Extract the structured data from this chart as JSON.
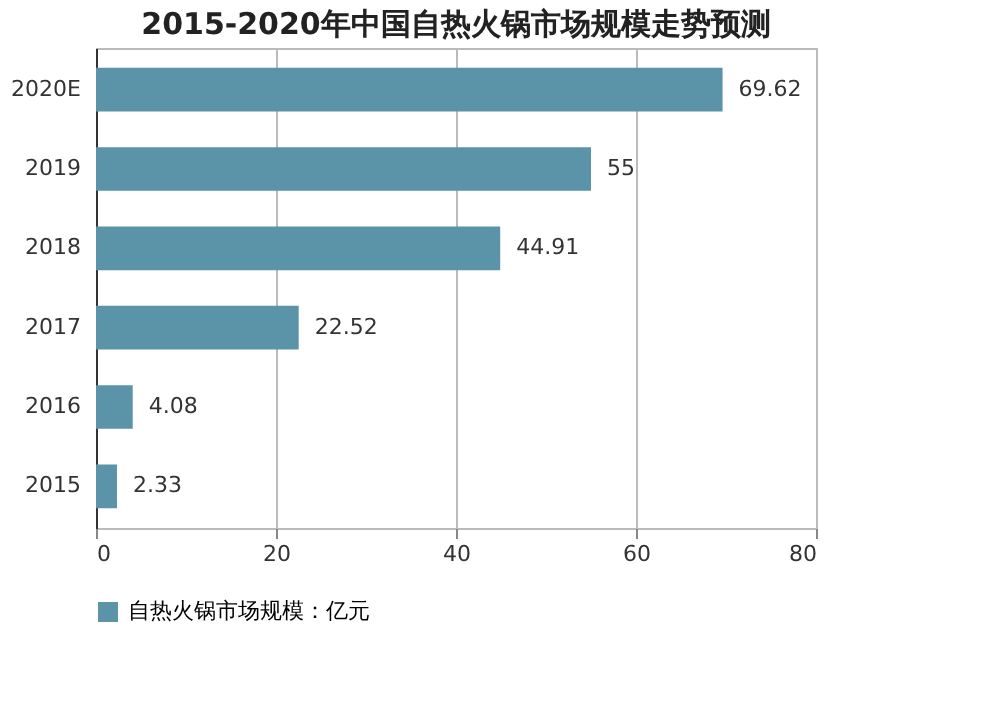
{
  "chart_data": {
    "type": "bar",
    "orientation": "horizontal",
    "title": "2015-2020年中国自热火锅市场规模走势预测",
    "categories": [
      "2020E",
      "2019",
      "2018",
      "2017",
      "2016",
      "2015"
    ],
    "series": [
      {
        "name": "自热火锅市场规模：亿元",
        "color": "#5b93a8",
        "values": [
          69.62,
          55,
          44.91,
          22.52,
          4.08,
          2.33
        ]
      }
    ],
    "xlim": [
      0,
      80
    ],
    "xticks": [
      0,
      20,
      40,
      60,
      80
    ],
    "grid": "x",
    "legend": "bottom",
    "data_labels": true
  }
}
